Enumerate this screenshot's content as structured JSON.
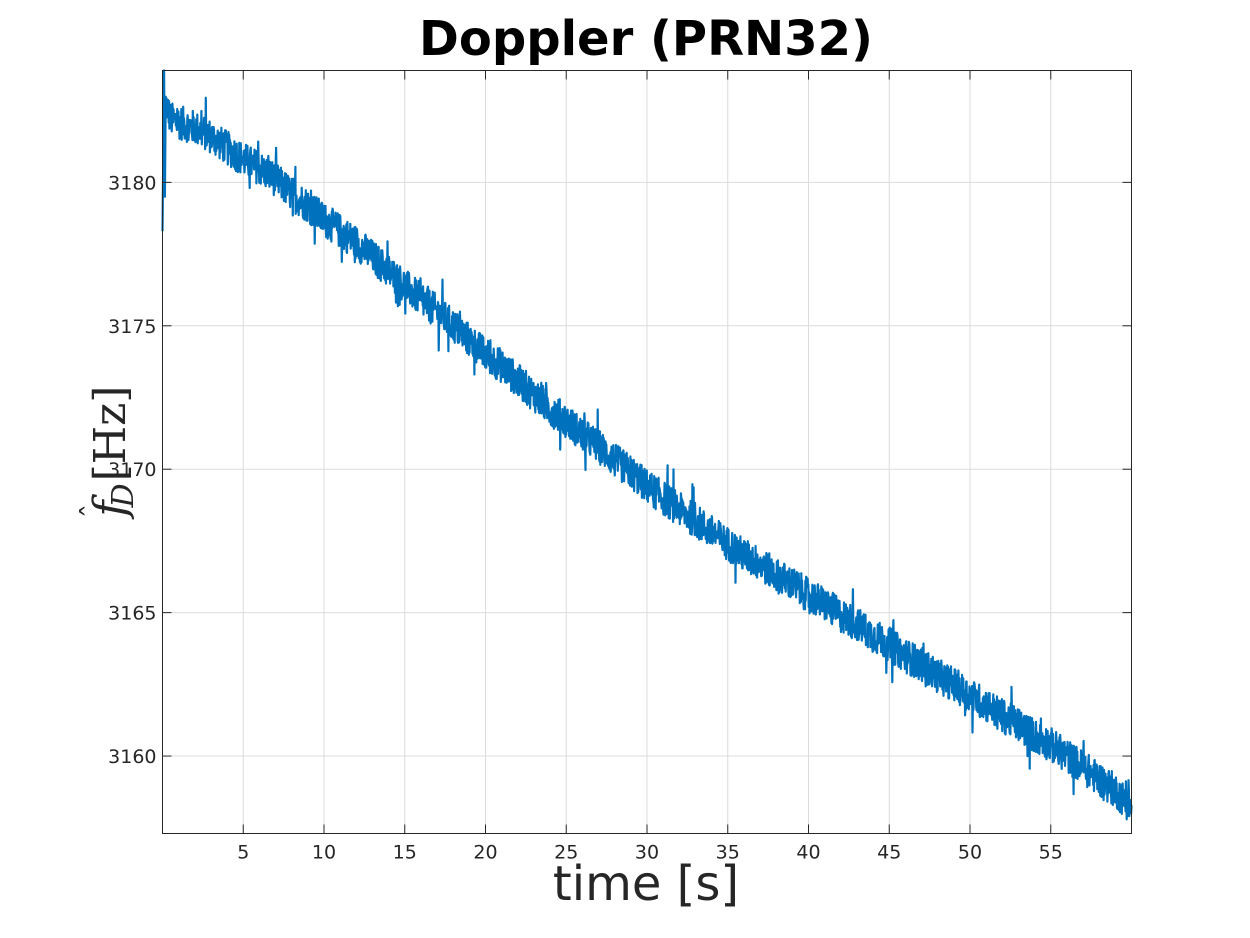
{
  "chart_data": {
    "type": "line",
    "title": "Doppler (PRN32)",
    "xlabel": "time [s]",
    "ylabel": {
      "symbol": "f",
      "hat": "ˆ",
      "subscript": "D",
      "unit": "[Hz]"
    },
    "xlim": [
      0,
      60
    ],
    "ylim": [
      3157.3,
      3183.9
    ],
    "xticks": [
      5,
      10,
      15,
      20,
      25,
      30,
      35,
      40,
      45,
      50,
      55
    ],
    "xtick_labels": [
      "5",
      "10",
      "15",
      "20",
      "25",
      "30",
      "35",
      "40",
      "45",
      "50",
      "55"
    ],
    "yticks": [
      3160,
      3165,
      3170,
      3175,
      3180
    ],
    "ytick_labels": [
      "3160",
      "3165",
      "3170",
      "3175",
      "3180"
    ],
    "grid": true,
    "series": [
      {
        "color": "#0072BD",
        "x": [
          0,
          0.1,
          0.2,
          0.5,
          1,
          2,
          3,
          4,
          5,
          6,
          7,
          8,
          9,
          10,
          11,
          12,
          13,
          14,
          15,
          16,
          17,
          18,
          19,
          20,
          21,
          22,
          23,
          24,
          25,
          26,
          27,
          28,
          29,
          30,
          31,
          32,
          33,
          34,
          35,
          36,
          37,
          38,
          39,
          40,
          41,
          42,
          43,
          44,
          45,
          46,
          47,
          48,
          49,
          50,
          51,
          52,
          53,
          54,
          55,
          56,
          57,
          58,
          59,
          60
        ],
        "y": [
          3178.3,
          3183.9,
          3182.8,
          3182.2,
          3182.1,
          3181.9,
          3181.6,
          3181.2,
          3180.8,
          3180.5,
          3180.1,
          3179.6,
          3179.2,
          3178.7,
          3178.3,
          3177.9,
          3177.4,
          3176.9,
          3176.4,
          3175.9,
          3175.5,
          3175.0,
          3174.5,
          3174.0,
          3173.6,
          3173.1,
          3172.6,
          3172.1,
          3171.7,
          3171.2,
          3170.8,
          3170.3,
          3169.9,
          3169.4,
          3169.0,
          3168.6,
          3168.2,
          3167.8,
          3167.4,
          3167.0,
          3166.7,
          3166.3,
          3166.0,
          3165.6,
          3165.3,
          3164.9,
          3164.6,
          3164.2,
          3163.9,
          3163.5,
          3163.2,
          3162.8,
          3162.5,
          3162.1,
          3161.8,
          3161.4,
          3161.1,
          3160.7,
          3160.4,
          3160.0,
          3159.6,
          3159.2,
          3158.8,
          3158.2
        ],
        "noise_amplitude_hz": 0.6
      }
    ]
  }
}
